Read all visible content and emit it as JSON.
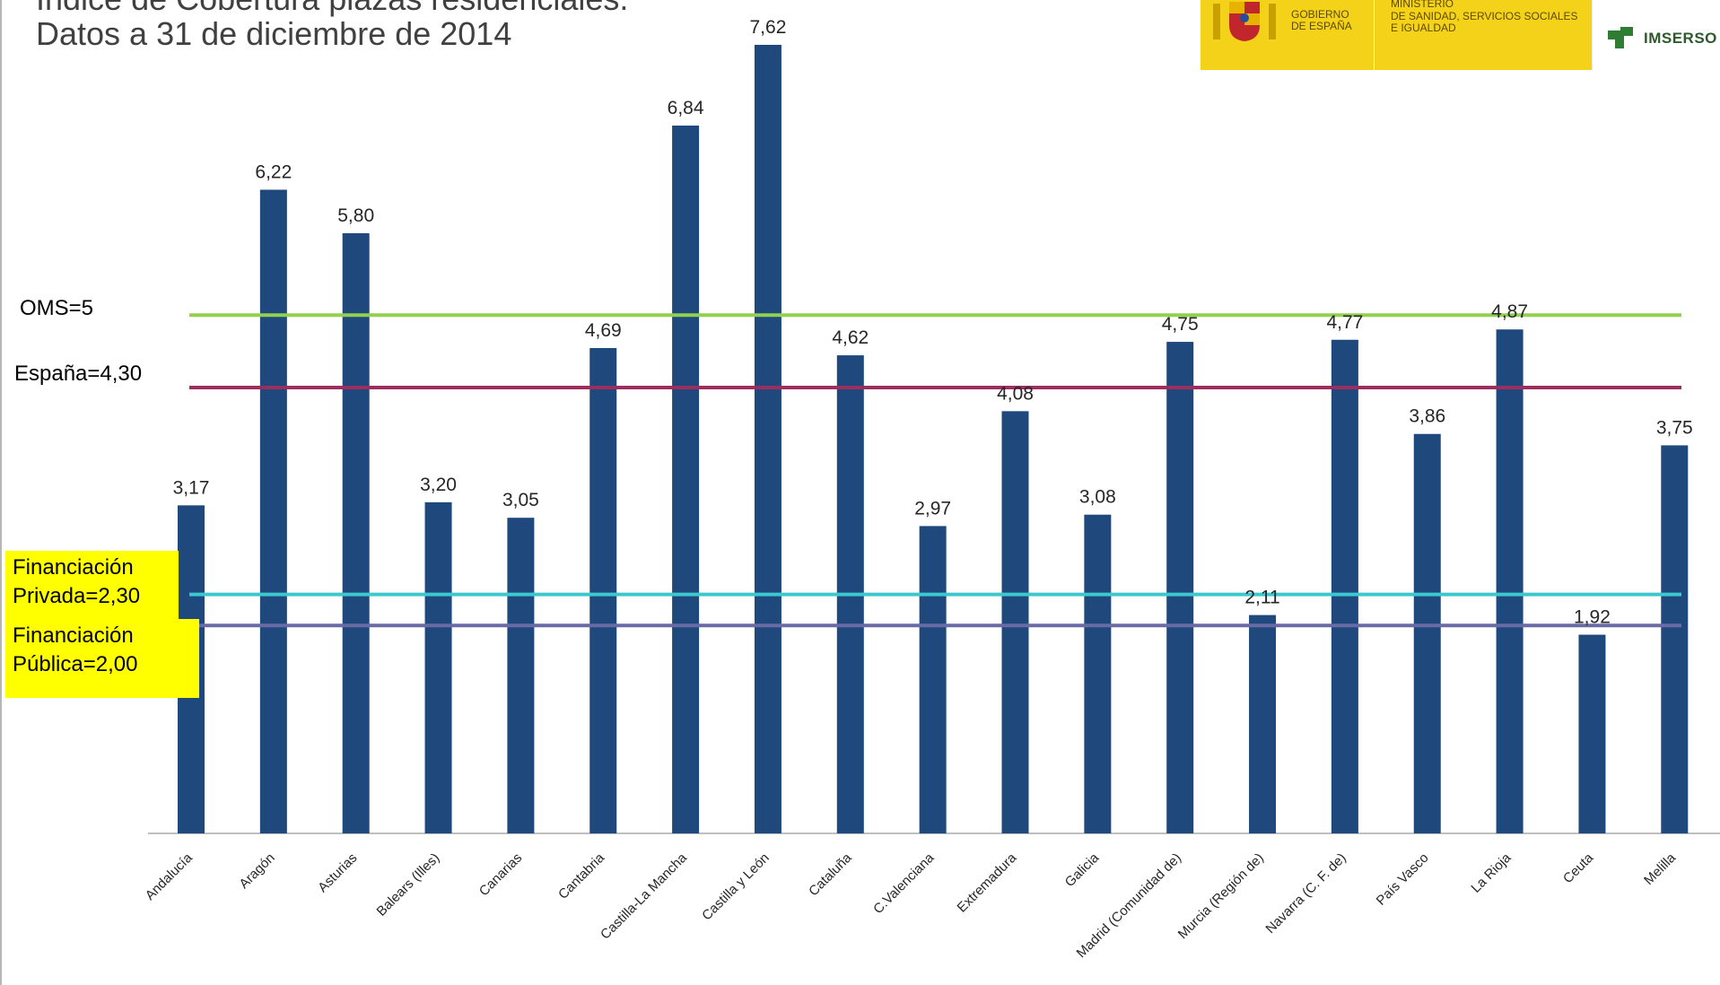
{
  "title_line1": "Índice de Cobertura plazas residenciales.",
  "title_line2": "Datos a 31 de diciembre de 2014",
  "logos": {
    "gov_text": "GOBIERNO\nDE ESPAÑA",
    "ministry_text": "MINISTERIO\nDE SANIDAD, SERVICIOS SOCIALES\nE IGUALDAD",
    "imserso_text": "IMSERSO"
  },
  "reference_labels": {
    "oms": "OMS=5",
    "espana": "España=4,30",
    "privada": "Financiación\nPrivada=2,30",
    "publica": "Financiación\nPública=2,00"
  },
  "colors": {
    "bar": "#1f497d",
    "oms": "#92d050",
    "espana": "#9b2d5f",
    "privada": "#3cc8cf",
    "publica": "#6a6aa6",
    "highlight_box": "#ffff00"
  },
  "chart_data": {
    "type": "bar",
    "categories": [
      "Andalucía",
      "Aragón",
      "Asturias",
      "Balears (Illes)",
      "Canarias",
      "Cantabria",
      "Castilla-La Mancha",
      "Castilla y León",
      "Cataluña",
      "C.Valenciana",
      "Extremadura",
      "Galicia",
      "Madrid (Comunidad de)",
      "Murcia (Región de)",
      "Navarra (C. F. de)",
      "País Vasco",
      "La Rioja",
      "Ceuta",
      "Melilla"
    ],
    "values": [
      3.17,
      6.22,
      5.8,
      3.2,
      3.05,
      4.69,
      6.84,
      7.62,
      4.62,
      2.97,
      4.08,
      3.08,
      4.75,
      2.11,
      4.77,
      3.86,
      4.87,
      1.92,
      3.75
    ],
    "value_labels": [
      "3,17",
      "6,22",
      "5,80",
      "3,20",
      "3,05",
      "4,69",
      "6,84",
      "7,62",
      "4,62",
      "2,97",
      "4,08",
      "3,08",
      "4,75",
      "2,11",
      "4,77",
      "3,86",
      "4,87",
      "1,92",
      "3,75"
    ],
    "reference_lines": [
      {
        "name": "OMS",
        "value": 5.0
      },
      {
        "name": "España",
        "value": 4.3
      },
      {
        "name": "Financiación Privada",
        "value": 2.3
      },
      {
        "name": "Financiación Pública",
        "value": 2.0
      }
    ],
    "ylim": [
      0,
      8.4
    ],
    "grid": false,
    "legend": "none"
  }
}
